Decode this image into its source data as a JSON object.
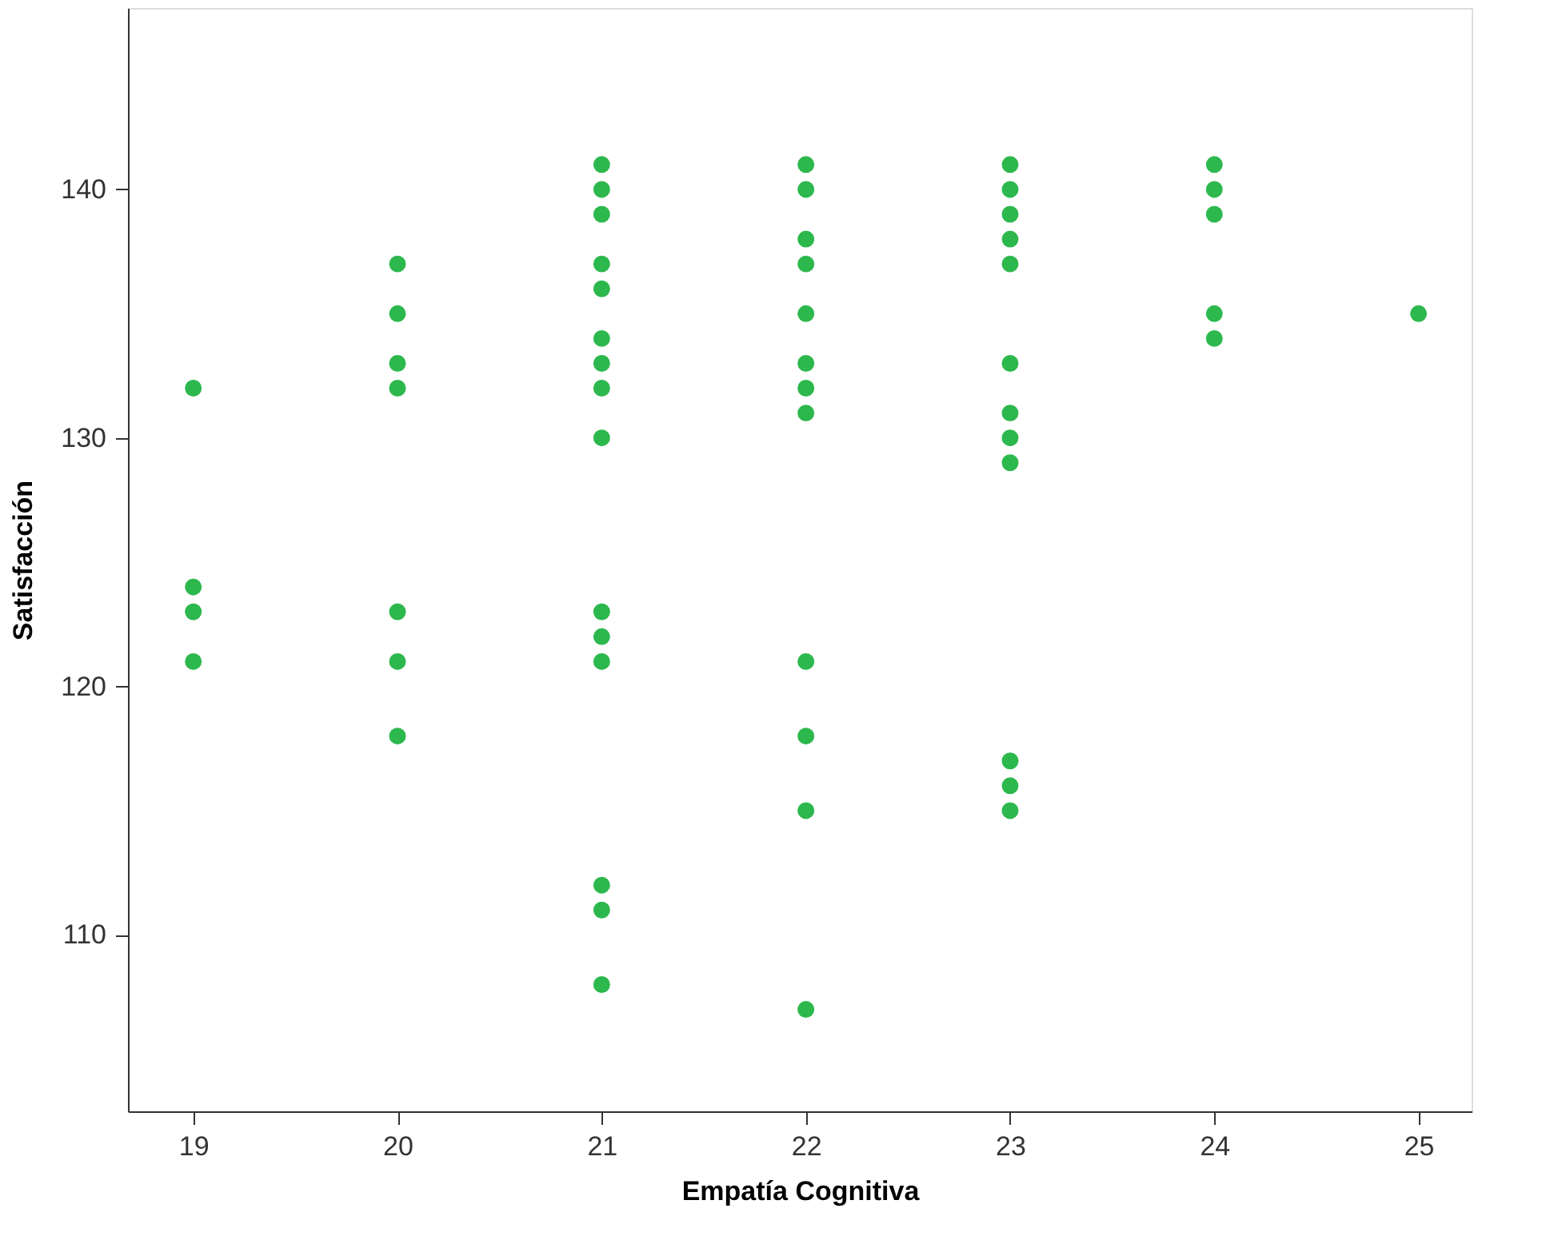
{
  "chart_data": {
    "type": "scatter",
    "xlabel": "Empatía Cognitiva",
    "ylabel": "Satisfacción",
    "x": [
      19,
      19,
      19,
      19,
      20,
      20,
      20,
      20,
      20,
      20,
      20,
      21,
      21,
      21,
      21,
      21,
      21,
      21,
      21,
      21,
      21,
      21,
      21,
      21,
      21,
      21,
      22,
      22,
      22,
      22,
      22,
      22,
      22,
      22,
      22,
      22,
      22,
      22,
      23,
      23,
      23,
      23,
      23,
      23,
      23,
      23,
      23,
      23,
      23,
      23,
      24,
      24,
      24,
      24,
      24,
      25
    ],
    "series": [
      {
        "color": "#2db84d",
        "values": [
          132,
          124,
          123,
          121,
          137,
          135,
          133,
          132,
          123,
          121,
          118,
          141,
          140,
          139,
          137,
          136,
          134,
          133,
          132,
          130,
          123,
          122,
          121,
          112,
          111,
          108,
          141,
          140,
          138,
          137,
          135,
          133,
          132,
          131,
          121,
          118,
          115,
          107,
          141,
          140,
          139,
          138,
          137,
          133,
          131,
          130,
          129,
          117,
          116,
          115,
          141,
          140,
          139,
          135,
          134,
          135
        ]
      }
    ],
    "xlim": [
      18.68,
      25.26
    ],
    "ylim": [
      102.9,
      147.3
    ],
    "xticks": [
      19,
      20,
      21,
      22,
      23,
      24,
      25
    ],
    "yticks": [
      110,
      120,
      130,
      140
    ],
    "grid": false,
    "legend": false,
    "marker": "circle"
  }
}
